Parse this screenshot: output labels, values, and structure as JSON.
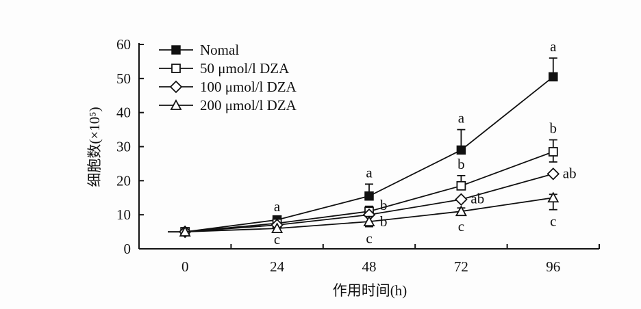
{
  "chart_data": {
    "type": "line",
    "title": "",
    "xlabel": "作用时间(h)",
    "ylabel": "细胞数(×10⁵)",
    "x": [
      0,
      24,
      48,
      72,
      96
    ],
    "xticks": [
      "0",
      "24",
      "48",
      "72",
      "96"
    ],
    "yticks": [
      "0",
      "10",
      "20",
      "30",
      "40",
      "50",
      "60"
    ],
    "xlim": [
      -12,
      108
    ],
    "ylim": [
      0,
      60
    ],
    "grid": false,
    "legend_position": "top-left",
    "series": [
      {
        "name": "Nomal",
        "marker": "filled-square",
        "values": [
          5,
          8.5,
          15.5,
          29,
          50.5
        ],
        "err_upper": [
          0.5,
          0.5,
          3.5,
          6,
          5.5
        ],
        "err_lower": [
          0,
          0,
          0,
          0,
          0
        ],
        "letters": [
          "",
          "a",
          "a",
          "a",
          "a"
        ]
      },
      {
        "name": "50 μmol/l DZA",
        "marker": "open-square",
        "values": [
          5,
          7.5,
          11,
          18.5,
          28.5
        ],
        "err_upper": [
          0,
          0,
          1.5,
          3,
          3.5
        ],
        "err_lower": [
          0,
          0,
          0,
          0,
          3
        ],
        "letters": [
          "",
          "",
          "b",
          "b",
          "b"
        ]
      },
      {
        "name": "100 μmol/l DZA",
        "marker": "open-diamond",
        "values": [
          5,
          7,
          10,
          14.5,
          22
        ],
        "err_upper": [
          0,
          0,
          0,
          0,
          0
        ],
        "err_lower": [
          0,
          0,
          0,
          0,
          0
        ],
        "letters": [
          "",
          "",
          "b",
          "ab",
          "ab"
        ]
      },
      {
        "name": "200 μmol/l DZA",
        "marker": "open-triangle",
        "values": [
          5,
          6,
          8,
          11,
          15
        ],
        "err_upper": [
          0,
          0,
          1.5,
          1,
          1
        ],
        "err_lower": [
          0,
          0,
          1.5,
          1,
          3.5
        ],
        "letters": [
          "",
          "c",
          "c",
          "c",
          "c"
        ]
      }
    ]
  }
}
